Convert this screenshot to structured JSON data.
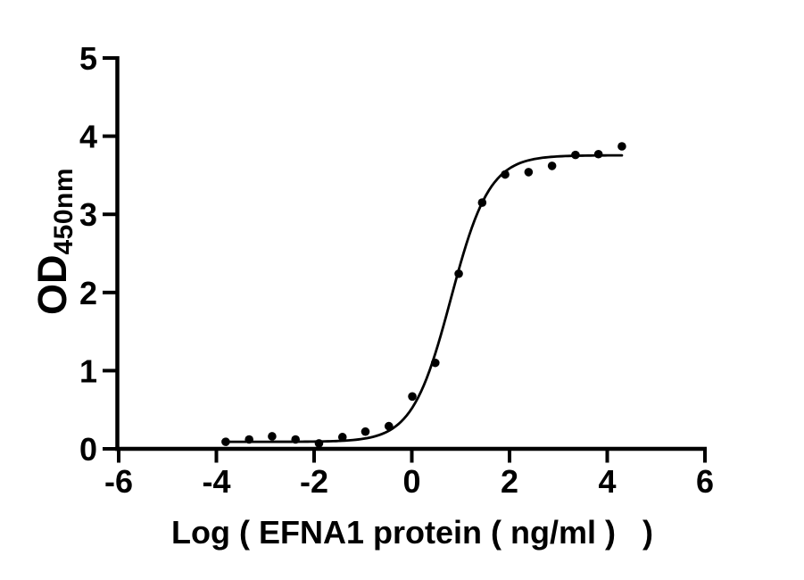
{
  "chart_data": {
    "type": "scatter",
    "title": "",
    "xlabel": "Log ( EFNA1 protein ( ng/ml )   )",
    "ylabel": "OD",
    "ylabel_subscript": "450nm",
    "xlim": [
      -6,
      6
    ],
    "ylim": [
      0,
      5
    ],
    "x_ticks": [
      -6,
      -4,
      -2,
      0,
      2,
      4,
      6
    ],
    "x_tick_labels": [
      "-6",
      "-4",
      "-2",
      "0",
      "2",
      "4",
      "6"
    ],
    "y_ticks": [
      0,
      1,
      2,
      3,
      4,
      5
    ],
    "y_tick_labels": [
      "0",
      "1",
      "2",
      "3",
      "4",
      "5"
    ],
    "grid": false,
    "legend": false,
    "marker_color": "#000000",
    "line_color": "#000000",
    "axis_color": "#000000",
    "background_color": "#ffffff",
    "points": {
      "x": [
        -3.81,
        -3.33,
        -2.86,
        -2.38,
        -1.9,
        -1.42,
        -0.95,
        -0.47,
        0.01,
        0.48,
        0.96,
        1.44,
        1.91,
        2.39,
        2.87,
        3.35,
        3.82,
        4.3
      ],
      "y": [
        0.09,
        0.12,
        0.16,
        0.12,
        0.07,
        0.15,
        0.22,
        0.29,
        0.67,
        1.1,
        2.24,
        3.15,
        3.51,
        3.54,
        3.62,
        3.76,
        3.77,
        3.87
      ]
    },
    "fit_curve": {
      "model": "four-parameter-logistic",
      "bottom": 0.09,
      "top": 3.755,
      "logEC50": 0.8,
      "hill_slope": 1.1,
      "x_start": -3.81,
      "x_end": 4.3
    }
  }
}
